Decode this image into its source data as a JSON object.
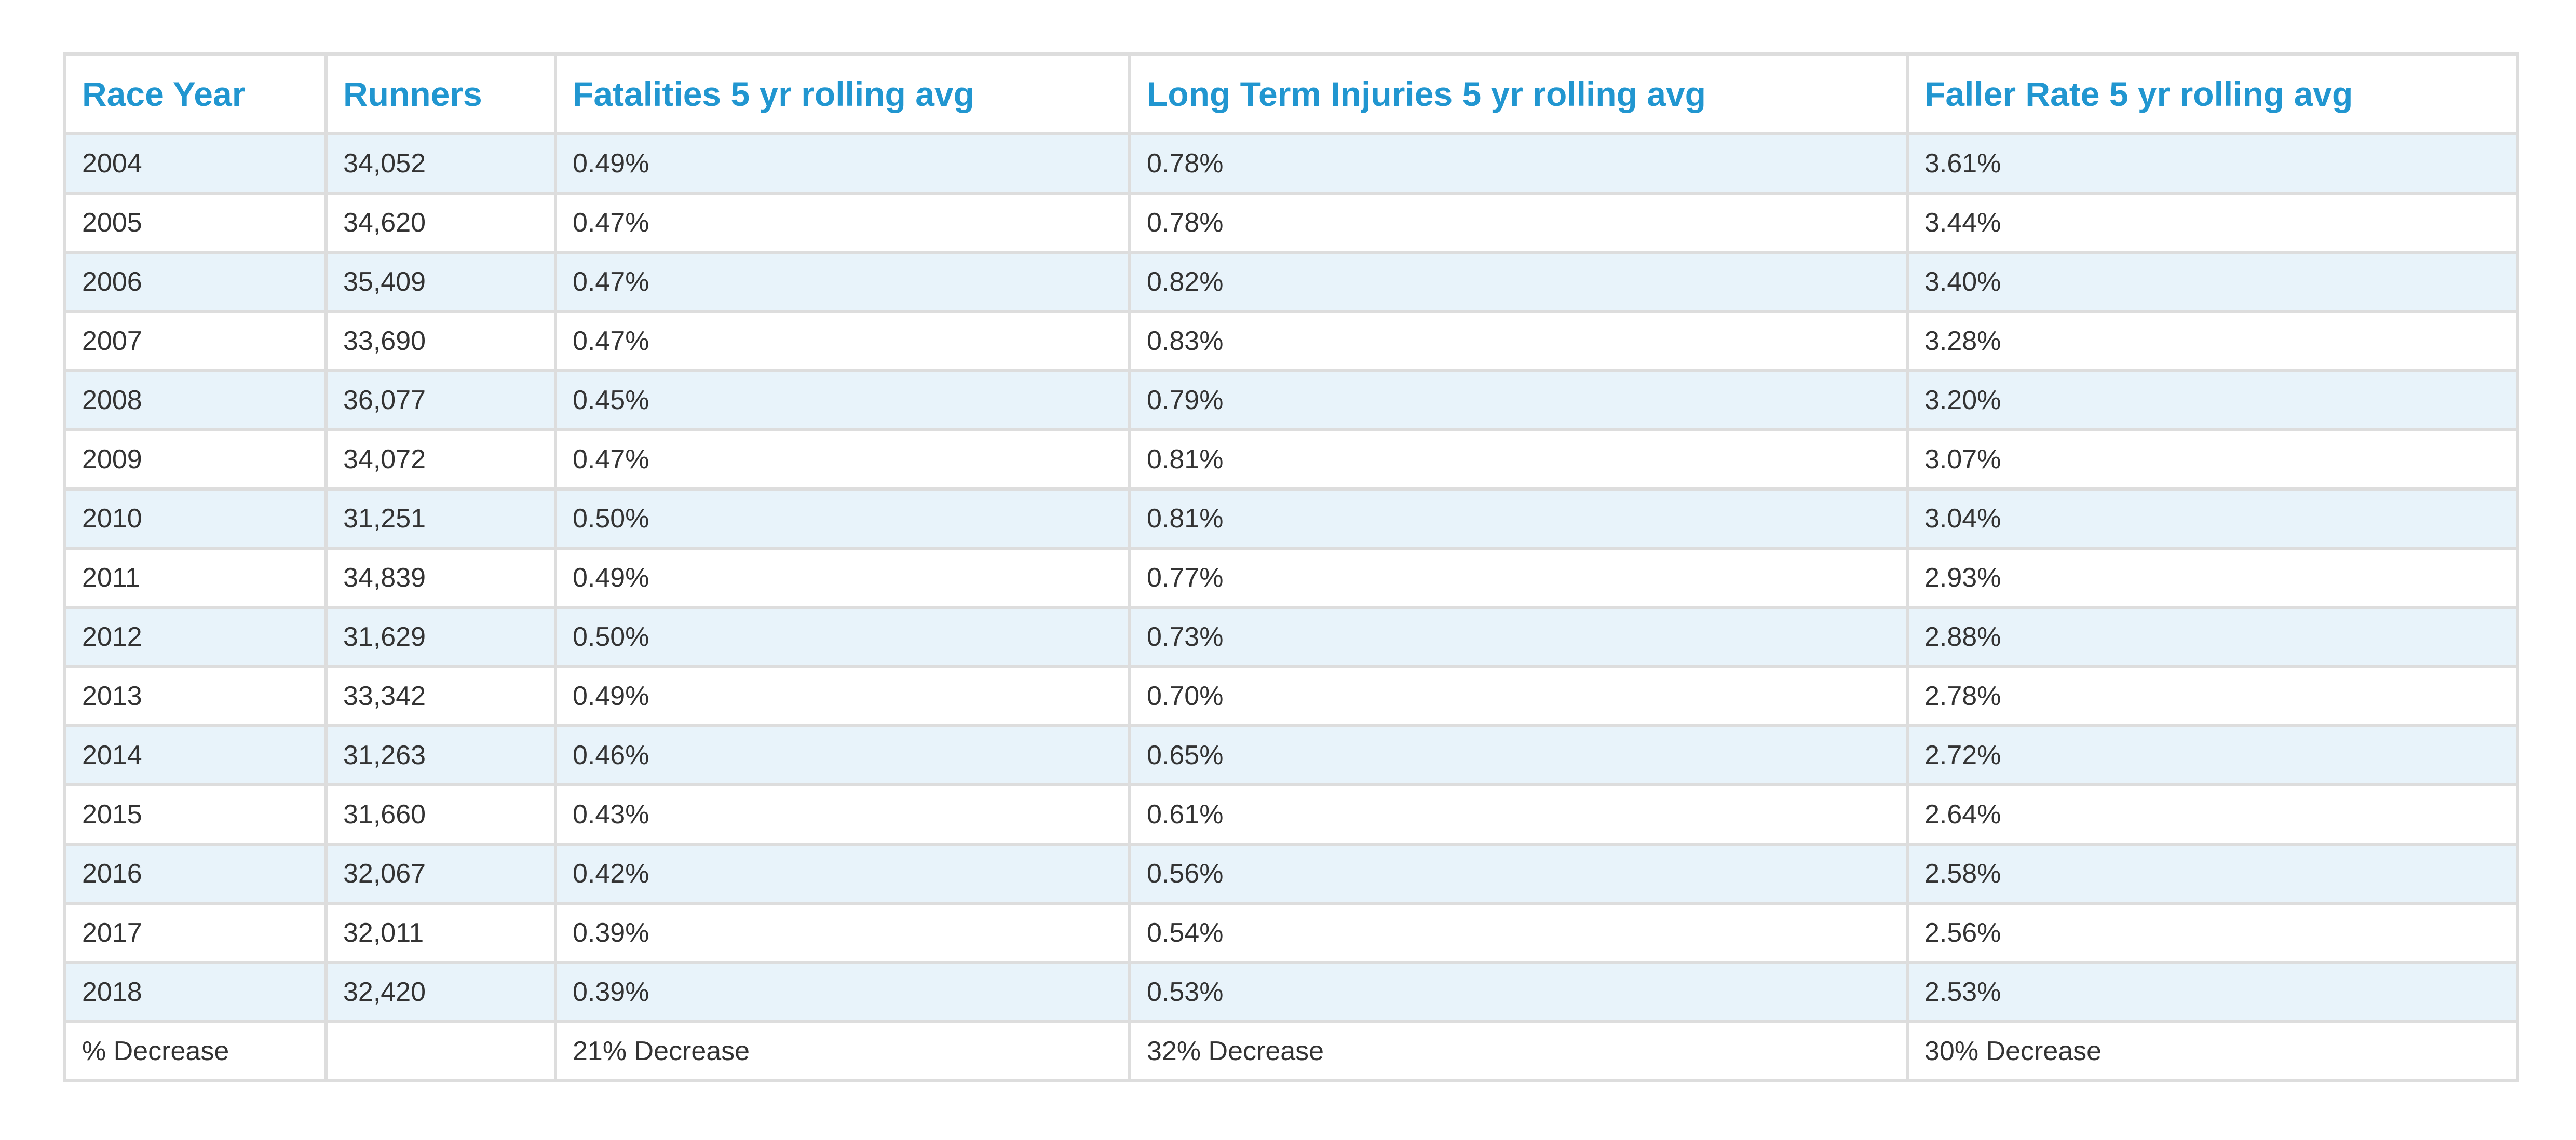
{
  "table": {
    "headers": [
      "Race Year",
      "Runners",
      "Fatalities 5 yr rolling avg",
      "Long Term Injuries 5 yr rolling avg",
      "Faller Rate 5 yr rolling avg"
    ],
    "rows": [
      [
        "2004",
        "34,052",
        "0.49%",
        "0.78%",
        "3.61%"
      ],
      [
        "2005",
        "34,620",
        "0.47%",
        "0.78%",
        "3.44%"
      ],
      [
        "2006",
        "35,409",
        "0.47%",
        "0.82%",
        "3.40%"
      ],
      [
        "2007",
        "33,690",
        "0.47%",
        "0.83%",
        "3.28%"
      ],
      [
        "2008",
        "36,077",
        "0.45%",
        "0.79%",
        "3.20%"
      ],
      [
        "2009",
        "34,072",
        "0.47%",
        "0.81%",
        "3.07%"
      ],
      [
        "2010",
        "31,251",
        "0.50%",
        "0.81%",
        "3.04%"
      ],
      [
        "2011",
        "34,839",
        "0.49%",
        "0.77%",
        "2.93%"
      ],
      [
        "2012",
        "31,629",
        "0.50%",
        "0.73%",
        "2.88%"
      ],
      [
        "2013",
        "33,342",
        "0.49%",
        "0.70%",
        "2.78%"
      ],
      [
        "2014",
        "31,263",
        "0.46%",
        "0.65%",
        "2.72%"
      ],
      [
        "2015",
        "31,660",
        "0.43%",
        "0.61%",
        "2.64%"
      ],
      [
        "2016",
        "32,067",
        "0.42%",
        "0.56%",
        "2.58%"
      ],
      [
        "2017",
        "32,011",
        "0.39%",
        "0.54%",
        "2.56%"
      ],
      [
        "2018",
        "32,420",
        "0.39%",
        "0.53%",
        "2.53%"
      ]
    ],
    "summary": [
      "% Decrease",
      "",
      "21% Decrease",
      "32% Decrease",
      "30% Decrease"
    ]
  },
  "colors": {
    "header_text": "#2196d0",
    "stripe": "#e8f3fa",
    "border": "#dddddd",
    "body_text": "#333333"
  }
}
